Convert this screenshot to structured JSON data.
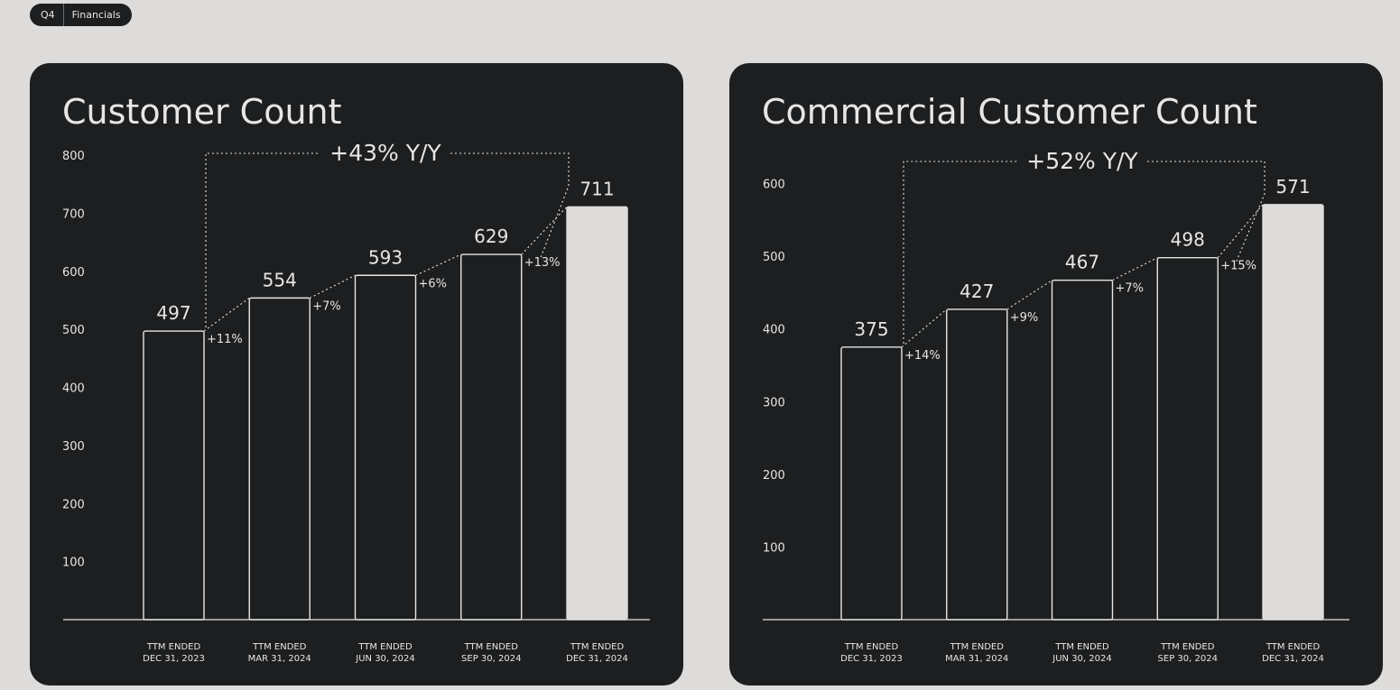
{
  "header": {
    "quarter": "Q4",
    "section": "Financials"
  },
  "chart_data": [
    {
      "type": "bar",
      "title": "Customer Count",
      "categories": [
        [
          "TTM ENDED",
          "DEC 31, 2023"
        ],
        [
          "TTM ENDED",
          "MAR 31, 2024"
        ],
        [
          "TTM ENDED",
          "JUN 30, 2024"
        ],
        [
          "TTM ENDED",
          "SEP 30, 2024"
        ],
        [
          "TTM ENDED",
          "DEC 31, 2024"
        ]
      ],
      "values": [
        497,
        554,
        593,
        629,
        711
      ],
      "value_labels": [
        "497",
        "554",
        "593",
        "629",
        "711"
      ],
      "growth_labels": [
        "+11%",
        "+7%",
        "+6%",
        "+13%"
      ],
      "yoy_label": "+43% Y/Y",
      "yticks": [
        100,
        200,
        300,
        400,
        500,
        600,
        700,
        800
      ],
      "ylim": [
        0,
        800
      ],
      "highlight_index": 4
    },
    {
      "type": "bar",
      "title": "Commercial Customer Count",
      "categories": [
        [
          "TTM ENDED",
          "DEC 31, 2023"
        ],
        [
          "TTM ENDED",
          "MAR 31, 2024"
        ],
        [
          "TTM ENDED",
          "JUN 30, 2024"
        ],
        [
          "TTM ENDED",
          "SEP 30, 2024"
        ],
        [
          "TTM ENDED",
          "DEC 31, 2024"
        ]
      ],
      "values": [
        375,
        427,
        467,
        498,
        571
      ],
      "value_labels": [
        "375",
        "427",
        "467",
        "498",
        "571"
      ],
      "growth_labels": [
        "+14%",
        "+9%",
        "+7%",
        "+15%"
      ],
      "yoy_label": "+52% Y/Y",
      "yticks": [
        100,
        200,
        300,
        400,
        500,
        600
      ],
      "ylim": [
        0,
        600
      ],
      "highlight_index": 4
    }
  ],
  "colors": {
    "background": "#dddcda",
    "card": "#1c1e20",
    "text": "#e6e6e4",
    "highlight": "#dddcda"
  }
}
